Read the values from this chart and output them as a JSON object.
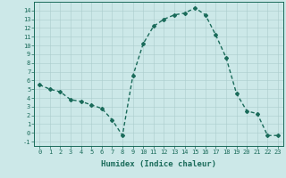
{
  "x": [
    0,
    1,
    2,
    3,
    4,
    5,
    6,
    7,
    8,
    9,
    10,
    11,
    12,
    13,
    14,
    15,
    16,
    17,
    18,
    19,
    20,
    21,
    22,
    23
  ],
  "y": [
    5.5,
    5.0,
    4.7,
    3.8,
    3.6,
    3.2,
    2.8,
    1.5,
    -0.3,
    6.5,
    10.2,
    12.2,
    13.0,
    13.5,
    13.7,
    14.3,
    13.5,
    11.2,
    8.6,
    4.5,
    2.5,
    2.2,
    -0.3,
    -0.3
  ],
  "line_color": "#1a6b5a",
  "marker": "D",
  "marker_size": 2.0,
  "bg_color": "#cce8e8",
  "grid_color": "#aacccc",
  "xlabel": "Humidex (Indice chaleur)",
  "xlim": [
    -0.5,
    23.5
  ],
  "ylim": [
    -1.5,
    15.0
  ],
  "yticks": [
    -1,
    0,
    1,
    2,
    3,
    4,
    5,
    6,
    7,
    8,
    9,
    10,
    11,
    12,
    13,
    14
  ],
  "xticks": [
    0,
    1,
    2,
    3,
    4,
    5,
    6,
    7,
    8,
    9,
    10,
    11,
    12,
    13,
    14,
    15,
    16,
    17,
    18,
    19,
    20,
    21,
    22,
    23
  ],
  "tick_fontsize": 5.0,
  "xlabel_fontsize": 6.5,
  "line_width": 1.0
}
